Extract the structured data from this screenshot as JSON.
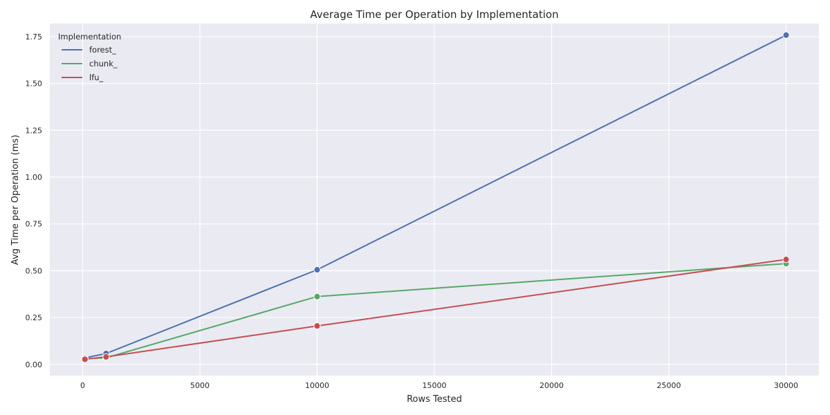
{
  "chart_data": {
    "type": "line",
    "title": "Average Time per Operation by Implementation",
    "xlabel": "Rows Tested",
    "ylabel": "Avg Time per Operation (ms)",
    "xlim": [
      -1400,
      31400
    ],
    "ylim": [
      -0.06,
      1.82
    ],
    "xticks": [
      0,
      5000,
      10000,
      15000,
      20000,
      25000,
      30000
    ],
    "yticks": [
      0.0,
      0.25,
      0.5,
      0.75,
      1.0,
      1.25,
      1.5,
      1.75
    ],
    "xtick_labels": [
      "0",
      "5000",
      "10000",
      "15000",
      "20000",
      "25000",
      "30000"
    ],
    "ytick_labels": [
      "0.00",
      "0.25",
      "0.50",
      "0.75",
      "1.00",
      "1.25",
      "1.50",
      "1.75"
    ],
    "grid": true,
    "legend": {
      "title": "Implementation",
      "placement": "top-left"
    },
    "x": [
      100,
      1000,
      10000,
      30000
    ],
    "series": [
      {
        "name": "forest_",
        "color": "#4c72b0",
        "values": [
          0.035,
          0.058,
          0.505,
          1.758
        ]
      },
      {
        "name": "chunk_",
        "color": "#55a868",
        "values": [
          0.03,
          0.035,
          0.362,
          0.538
        ]
      },
      {
        "name": "lfu_",
        "color": "#c44e52",
        "values": [
          0.027,
          0.04,
          0.205,
          0.56
        ]
      }
    ]
  }
}
